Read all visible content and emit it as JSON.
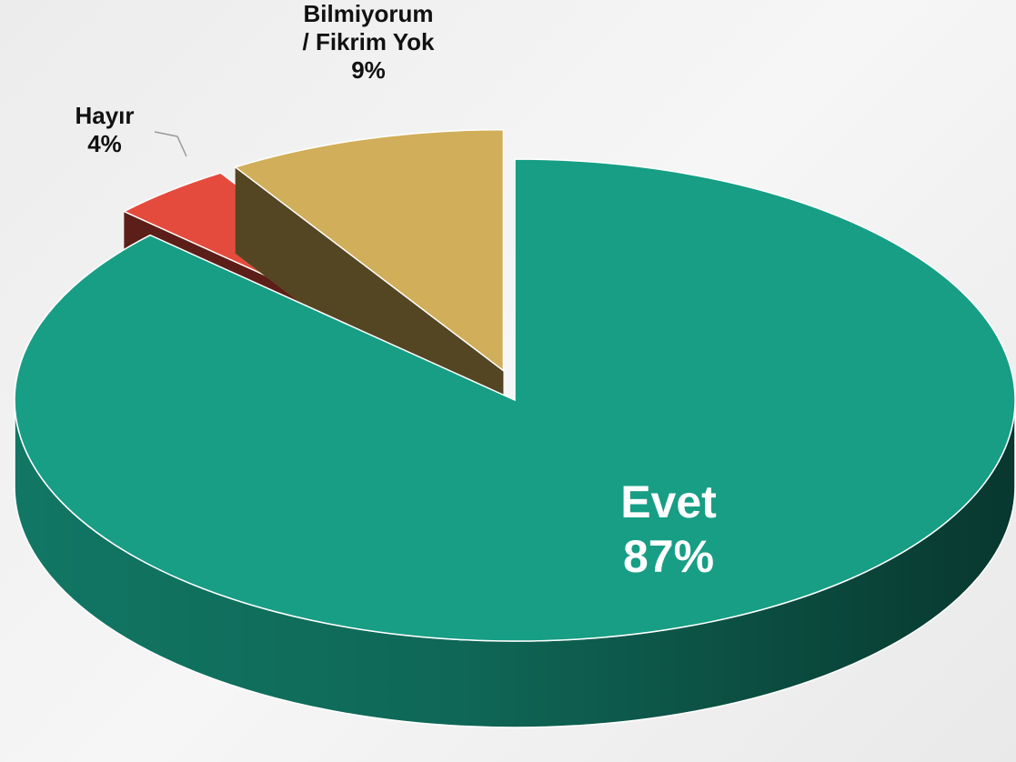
{
  "chart_data": {
    "type": "pie",
    "categories": [
      "Evet",
      "Hayır",
      "Bilmiyorum / Fikrim Yok"
    ],
    "values": [
      87,
      4,
      9
    ],
    "value_labels": [
      "87%",
      "4%",
      "9%"
    ],
    "colors": [
      "#179e85",
      "#e54b3c",
      "#d1ae59"
    ],
    "three_d": true
  }
}
